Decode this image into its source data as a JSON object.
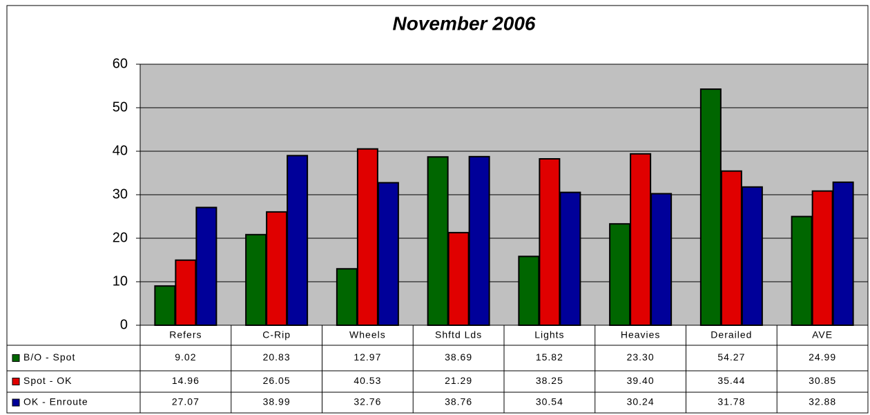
{
  "chart_data": {
    "type": "bar",
    "title": "November 2006",
    "categories": [
      "Refers",
      "C-Rip",
      "Wheels",
      "Shftd Lds",
      "Lights",
      "Heavies",
      "Derailed",
      "AVE"
    ],
    "series": [
      {
        "name": "B/O - Spot",
        "color": "#006600",
        "values": [
          9.02,
          20.83,
          12.97,
          38.69,
          15.82,
          23.3,
          54.27,
          24.99
        ],
        "value_labels": [
          "9.02",
          "20.83",
          "12.97",
          "38.69",
          "15.82",
          "23.30",
          "54.27",
          "24.99"
        ]
      },
      {
        "name": "Spot - OK",
        "color": "#e00000",
        "values": [
          14.96,
          26.05,
          40.53,
          21.29,
          38.25,
          39.4,
          35.44,
          30.85
        ],
        "value_labels": [
          "14.96",
          "26.05",
          "40.53",
          "21.29",
          "38.25",
          "39.40",
          "35.44",
          "30.85"
        ]
      },
      {
        "name": "OK - Enroute",
        "color": "#000099",
        "values": [
          27.07,
          38.99,
          32.76,
          38.76,
          30.54,
          30.24,
          31.78,
          32.88
        ],
        "value_labels": [
          "27.07",
          "38.99",
          "32.76",
          "38.76",
          "30.54",
          "30.24",
          "31.78",
          "32.88"
        ]
      }
    ],
    "ylim": [
      0,
      60
    ],
    "yticks": [
      0,
      10,
      20,
      30,
      40,
      50,
      60
    ],
    "grid": true,
    "plot_background": "#c0c0c0"
  }
}
